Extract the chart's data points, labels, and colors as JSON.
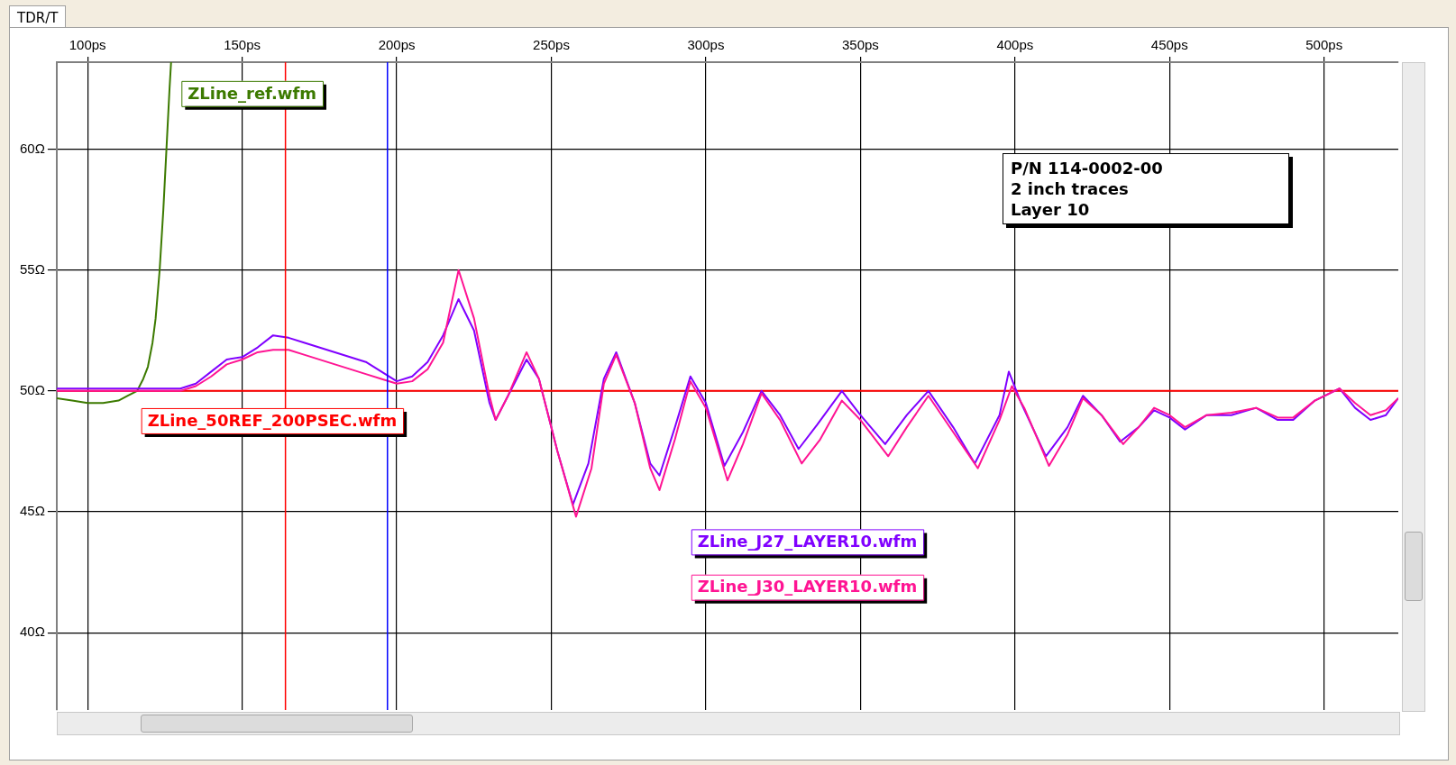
{
  "chart_data": {
    "type": "line",
    "title": "TDR/T",
    "annotations": [
      "P/N 114-0002-00",
      "2 inch traces",
      "Layer 10"
    ],
    "xlim": [
      90,
      524
    ],
    "xticks": [
      {
        "value": 100,
        "label": "100ps"
      },
      {
        "value": 150,
        "label": "150ps"
      },
      {
        "value": 200,
        "label": "200ps"
      },
      {
        "value": 250,
        "label": "250ps"
      },
      {
        "value": 300,
        "label": "300ps"
      },
      {
        "value": 350,
        "label": "350ps"
      },
      {
        "value": 400,
        "label": "400ps"
      },
      {
        "value": 450,
        "label": "450ps"
      },
      {
        "value": 500,
        "label": "500ps"
      }
    ],
    "ylim": [
      36.8,
      63.6
    ],
    "yticks": [
      {
        "value": 40,
        "label": "40Ω"
      },
      {
        "value": 45,
        "label": "45Ω"
      },
      {
        "value": 50,
        "label": "50Ω"
      },
      {
        "value": 55,
        "label": "55Ω"
      },
      {
        "value": 60,
        "label": "60Ω"
      }
    ],
    "grid": true,
    "marker": "none",
    "ref_lines": [
      {
        "axis": "x",
        "value": 164,
        "color": "#ff0000"
      },
      {
        "axis": "x",
        "value": 197,
        "color": "#0000ff"
      }
    ],
    "series": [
      {
        "name": "ZLine_ref.wfm",
        "color": "#3c7a00",
        "x": [
          90,
          95,
          100,
          105,
          110,
          113,
          116,
          118,
          119.5,
          121,
          122,
          123.3,
          124.5,
          125.5,
          126.5,
          127
        ],
        "values": [
          49.7,
          49.6,
          49.5,
          49.5,
          49.6,
          49.8,
          50.0,
          50.5,
          51.0,
          52.0,
          53.0,
          55.0,
          57.5,
          60.0,
          62.5,
          63.6
        ]
      },
      {
        "name": "ZLine_50REF_200PSEC.wfm",
        "color": "#ff0000",
        "x": [
          90,
          524
        ],
        "values": [
          50,
          50
        ]
      },
      {
        "name": "ZLine_J27_LAYER10.wfm",
        "color": "#8000ff",
        "x": [
          90,
          100,
          110,
          120,
          130,
          135,
          140,
          145,
          150,
          155,
          160,
          165,
          170,
          180,
          190,
          195,
          200,
          205,
          210,
          215,
          220,
          225,
          230,
          232,
          236,
          242,
          246,
          252,
          257,
          262,
          267,
          271,
          277,
          282,
          285,
          290,
          295,
          300,
          306,
          312,
          318,
          324,
          330,
          336,
          344,
          350,
          358,
          365,
          372,
          380,
          387,
          395,
          398,
          402,
          410,
          417,
          422,
          428,
          434,
          440,
          445,
          450,
          455,
          462,
          470,
          478,
          485,
          490,
          497,
          505,
          510,
          515,
          520,
          524
        ],
        "values": [
          50.1,
          50.1,
          50.1,
          50.1,
          50.1,
          50.3,
          50.8,
          51.3,
          51.4,
          51.8,
          52.3,
          52.2,
          52.0,
          51.6,
          51.2,
          50.8,
          50.4,
          50.6,
          51.2,
          52.3,
          53.8,
          52.5,
          49.5,
          48.8,
          49.8,
          51.3,
          50.5,
          47.5,
          45.3,
          47.0,
          50.5,
          51.6,
          49.5,
          47.0,
          46.5,
          48.5,
          50.6,
          49.5,
          46.9,
          48.3,
          50.0,
          49.0,
          47.6,
          48.6,
          50.0,
          49.0,
          47.8,
          49.0,
          50.0,
          48.5,
          47.0,
          49.0,
          50.8,
          49.5,
          47.3,
          48.5,
          49.8,
          49.0,
          47.9,
          48.5,
          49.2,
          48.9,
          48.4,
          49.0,
          49.0,
          49.3,
          48.8,
          48.8,
          49.6,
          50.1,
          49.3,
          48.8,
          49.0,
          49.7
        ]
      },
      {
        "name": "ZLine_J30_LAYER10.wfm",
        "color": "#ff1493",
        "x": [
          90,
          100,
          110,
          120,
          130,
          135,
          140,
          145,
          150,
          155,
          160,
          165,
          170,
          180,
          190,
          195,
          200,
          205,
          210,
          215,
          220,
          225,
          230,
          232,
          236,
          242,
          246,
          252,
          258,
          263,
          267,
          271,
          277,
          282,
          285,
          290,
          295,
          300,
          307,
          312,
          318,
          324,
          331,
          337,
          344,
          350,
          359,
          365,
          372,
          380,
          388,
          395,
          399,
          403,
          411,
          417,
          422,
          428,
          435,
          440,
          445,
          450,
          455,
          462,
          470,
          478,
          485,
          490,
          497,
          505,
          510,
          515,
          520,
          524
        ],
        "values": [
          50.0,
          50.0,
          50.0,
          50.0,
          50.0,
          50.2,
          50.6,
          51.1,
          51.3,
          51.6,
          51.7,
          51.7,
          51.5,
          51.1,
          50.7,
          50.5,
          50.3,
          50.4,
          50.9,
          52.0,
          55.0,
          53.0,
          49.8,
          48.8,
          49.8,
          51.6,
          50.5,
          47.5,
          44.8,
          46.8,
          50.3,
          51.5,
          49.5,
          46.8,
          45.9,
          48.0,
          50.4,
          49.3,
          46.3,
          47.8,
          49.9,
          48.8,
          47.0,
          48.0,
          49.6,
          48.8,
          47.3,
          48.5,
          49.8,
          48.3,
          46.8,
          48.8,
          50.2,
          49.3,
          46.9,
          48.2,
          49.7,
          49.0,
          47.8,
          48.5,
          49.3,
          49.0,
          48.5,
          49.0,
          49.1,
          49.3,
          48.9,
          48.9,
          49.6,
          50.1,
          49.5,
          49.0,
          49.2,
          49.7
        ]
      }
    ]
  }
}
